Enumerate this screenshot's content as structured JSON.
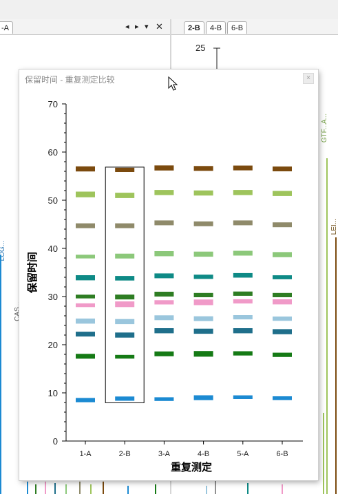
{
  "left_tabs": [
    {
      "label": "-A"
    }
  ],
  "right_tabs": [
    {
      "label": "2-B"
    },
    {
      "label": "4-B"
    },
    {
      "label": "6-B"
    }
  ],
  "background": {
    "top_value": "25",
    "side_labels": [
      "LOG...",
      "CAS...",
      "GTF...A...",
      "LEI..."
    ]
  },
  "dialog": {
    "title": "保留时间 - 重复测定比较",
    "close_symbol": "×"
  },
  "chart_data": {
    "type": "scatter",
    "xlabel": "重复测定",
    "ylabel": "保留时间",
    "categories": [
      "1-A",
      "2-B",
      "3-A",
      "4-B",
      "5-A",
      "6-B"
    ],
    "ylim": [
      0,
      70
    ],
    "yticks": [
      0,
      10,
      20,
      30,
      40,
      50,
      60,
      70
    ],
    "selected_category": "2-B",
    "series": [
      {
        "color": "#7b4a0e",
        "values": [
          56.5,
          56.3,
          56.7,
          56.6,
          56.7,
          56.5
        ],
        "thick": [
          2.2,
          1.6,
          2.2,
          2.0,
          2.0,
          2.0
        ]
      },
      {
        "color": "#9ec45c",
        "values": [
          51.2,
          51.0,
          51.6,
          51.5,
          51.6,
          51.4
        ],
        "thick": [
          2.6,
          2.4,
          2.2,
          2.2,
          2.2,
          2.2
        ]
      },
      {
        "color": "#8f8a6a",
        "values": [
          44.7,
          44.7,
          45.3,
          45.1,
          45.3,
          44.9
        ],
        "thick": [
          2.0,
          2.0,
          2.0,
          2.0,
          2.0,
          2.0
        ]
      },
      {
        "color": "#8cc87a",
        "values": [
          38.3,
          38.4,
          38.9,
          38.8,
          39.0,
          38.7
        ],
        "thick": [
          1.2,
          2.0,
          2.2,
          2.2,
          2.0,
          2.2
        ]
      },
      {
        "color": "#0e8a86",
        "values": [
          33.9,
          33.8,
          34.3,
          34.1,
          34.4,
          34.0
        ],
        "thick": [
          2.2,
          1.8,
          2.0,
          1.6,
          1.8,
          1.4
        ]
      },
      {
        "color": "#2e7d23",
        "values": [
          30.0,
          29.9,
          30.5,
          30.3,
          30.6,
          30.3
        ],
        "thick": [
          1.2,
          2.0,
          2.0,
          1.6,
          1.6,
          1.6
        ]
      },
      {
        "color": "#f09ac8",
        "values": [
          28.2,
          28.4,
          28.8,
          28.8,
          29.0,
          28.9
        ],
        "thick": [
          1.2,
          2.6,
          1.6,
          2.6,
          1.6,
          2.2
        ]
      },
      {
        "color": "#9ac6dd",
        "values": [
          24.9,
          24.8,
          25.6,
          25.4,
          25.7,
          25.4
        ],
        "thick": [
          2.2,
          2.2,
          2.0,
          2.0,
          1.6,
          1.6
        ]
      },
      {
        "color": "#1f6f8b",
        "values": [
          22.2,
          22.0,
          22.9,
          22.8,
          22.9,
          22.7
        ],
        "thick": [
          2.0,
          2.2,
          2.2,
          2.2,
          2.2,
          2.2
        ]
      },
      {
        "color": "#157a15",
        "values": [
          17.6,
          17.5,
          18.1,
          18.1,
          18.2,
          17.9
        ],
        "thick": [
          2.0,
          1.2,
          2.0,
          2.6,
          1.6,
          1.6
        ]
      },
      {
        "color": "#1c8ad2",
        "values": [
          8.5,
          8.8,
          8.7,
          9.0,
          9.1,
          8.9
        ],
        "thick": [
          1.6,
          1.6,
          1.2,
          2.0,
          1.2,
          1.2
        ]
      }
    ]
  }
}
